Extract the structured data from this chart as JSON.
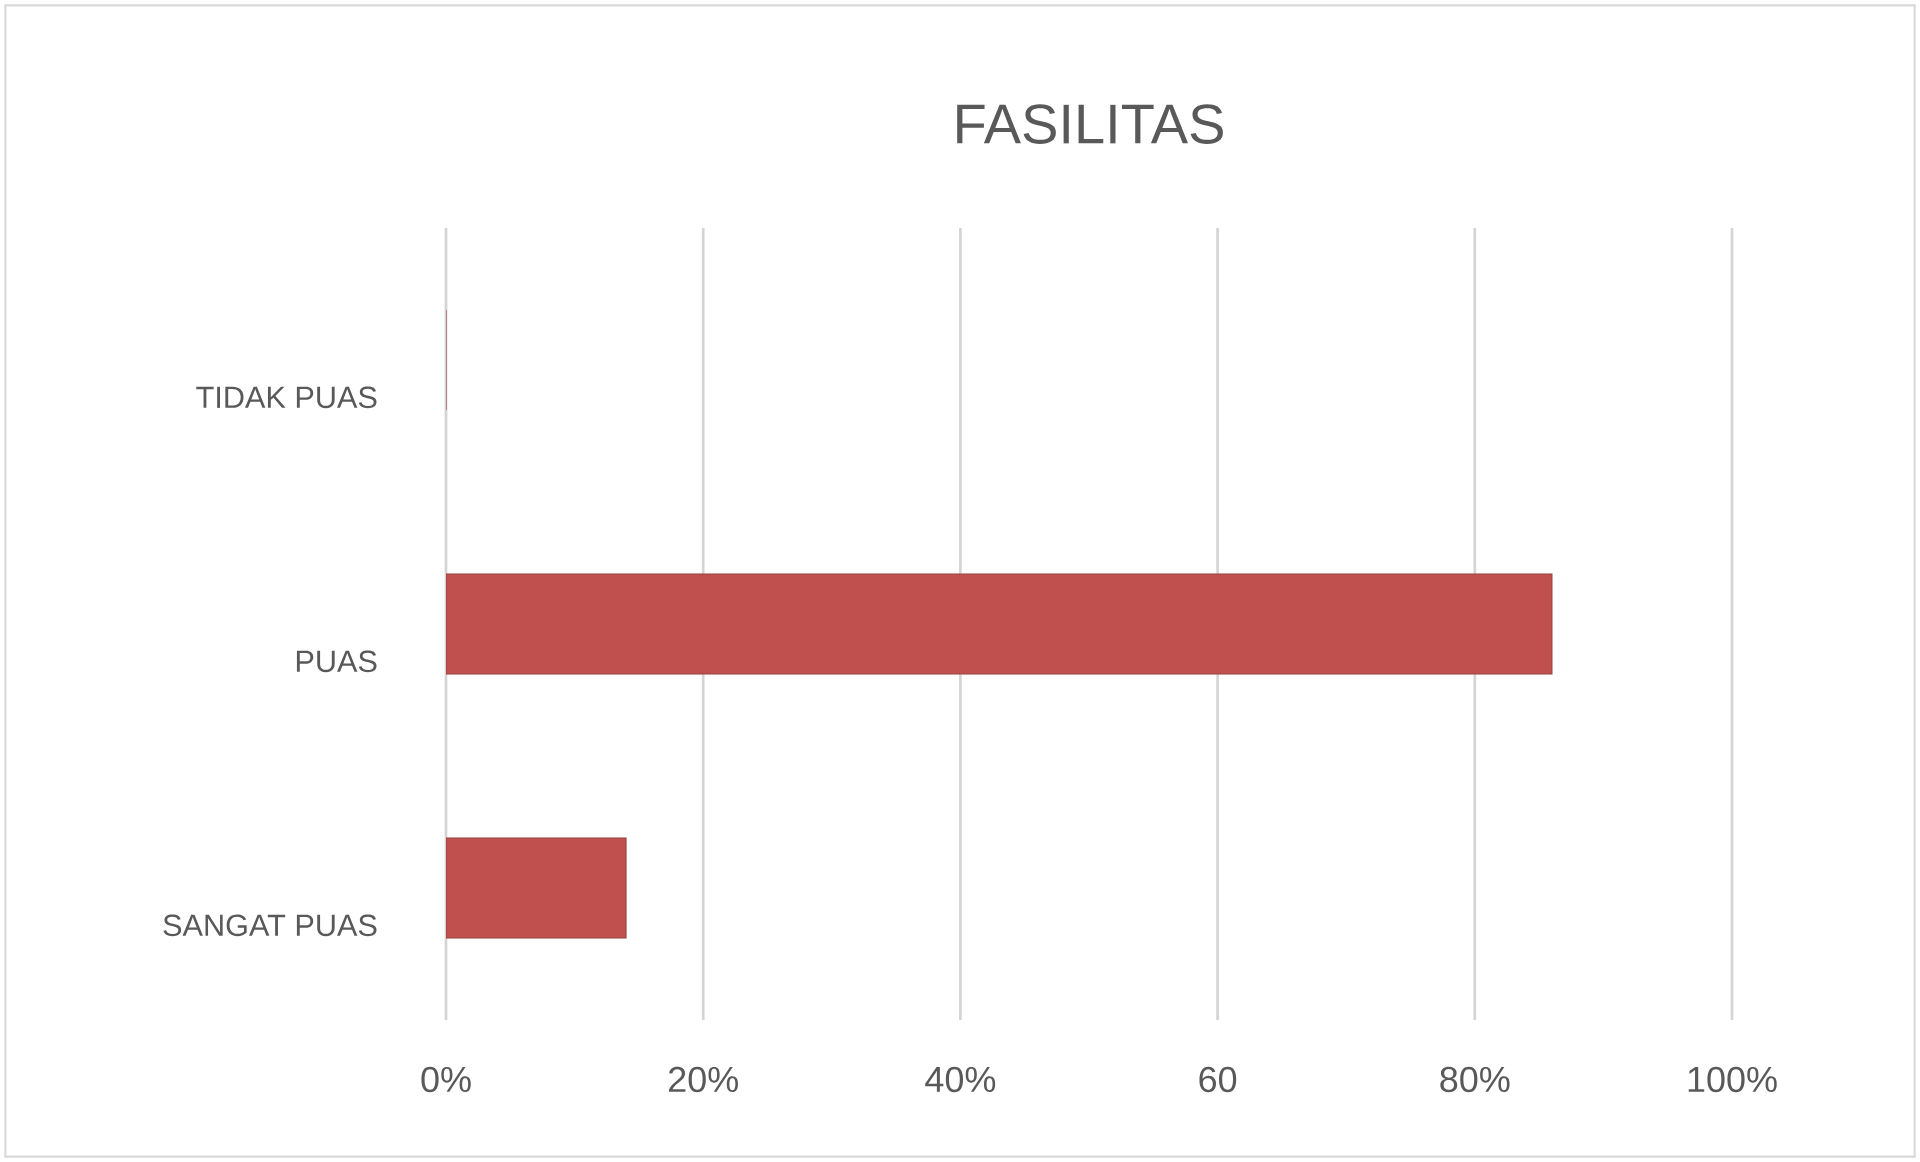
{
  "chart_data": {
    "type": "bar",
    "orientation": "horizontal",
    "title": "FASILITAS",
    "categories": [
      "TIDAK PUAS",
      "PUAS",
      "SANGAT PUAS"
    ],
    "values": [
      0,
      86,
      14
    ],
    "color": "#c0504d",
    "xlim": [
      0,
      100
    ],
    "xticks": [
      {
        "value": 0,
        "label": "0%"
      },
      {
        "value": 20,
        "label": "20%"
      },
      {
        "value": 40,
        "label": "40%"
      },
      60,
      {
        "value": 80,
        "label": "80%"
      },
      {
        "value": 100,
        "label": "100%"
      }
    ],
    "grid": "x"
  }
}
